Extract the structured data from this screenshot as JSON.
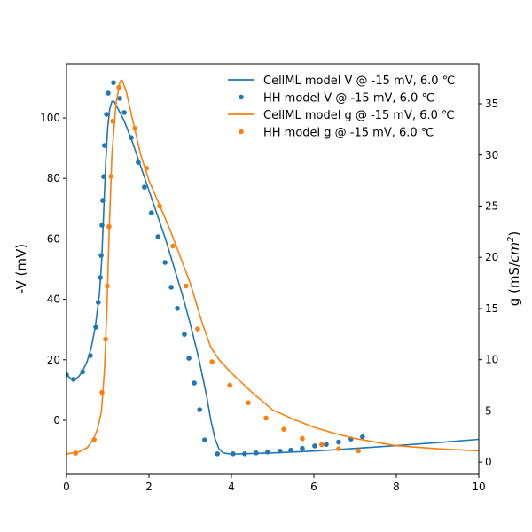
{
  "chart_data": {
    "type": "line",
    "xlabel": "",
    "ylabel": "-V (mV)",
    "ylabel_right_prefix": "g (mS/",
    "ylabel_right_unit": "cm",
    "ylabel_right_exp": "2",
    "ylabel_right_suffix": ")",
    "xlim": [
      0,
      10
    ],
    "ylim": [
      -17.9,
      117.9
    ],
    "ylim_right": [
      -1.2,
      38.9
    ],
    "xticks": [
      "0",
      "2",
      "4",
      "6",
      "8",
      "10"
    ],
    "yticks": [
      "0",
      "20",
      "40",
      "60",
      "80",
      "100"
    ],
    "yticks_right": [
      "0",
      "5",
      "10",
      "15",
      "20",
      "25",
      "30",
      "35"
    ],
    "legend_position": "top-right",
    "colors": {
      "V": "#1f77b4",
      "g": "#ff7f0e"
    },
    "series": [
      {
        "name": "CellML model V @ -15 mV, 6.0 ℃",
        "kind": "line",
        "axis": "left",
        "color": "#1f77b4",
        "points": [
          [
            0,
            15
          ],
          [
            0.1,
            13.8
          ],
          [
            0.2,
            13.5
          ],
          [
            0.3,
            14.5
          ],
          [
            0.4,
            16.5
          ],
          [
            0.5,
            19.5
          ],
          [
            0.6,
            24
          ],
          [
            0.7,
            31
          ],
          [
            0.8,
            42
          ],
          [
            0.85,
            52
          ],
          [
            0.9,
            68
          ],
          [
            0.95,
            85
          ],
          [
            1.0,
            97
          ],
          [
            1.05,
            103
          ],
          [
            1.1,
            105.5
          ],
          [
            1.15,
            105.5
          ],
          [
            1.25,
            103
          ],
          [
            1.4,
            99
          ],
          [
            1.6,
            92
          ],
          [
            1.8,
            84
          ],
          [
            2.0,
            76
          ],
          [
            2.2,
            68
          ],
          [
            2.4,
            60
          ],
          [
            2.6,
            51
          ],
          [
            2.8,
            42
          ],
          [
            3.0,
            32
          ],
          [
            3.2,
            21
          ],
          [
            3.4,
            8
          ],
          [
            3.5,
            0
          ],
          [
            3.6,
            -6
          ],
          [
            3.7,
            -9.5
          ],
          [
            3.8,
            -10.8
          ],
          [
            4.0,
            -11.2
          ],
          [
            5,
            -10.8
          ],
          [
            6,
            -10.2
          ],
          [
            7,
            -9.3
          ],
          [
            8,
            -8.4
          ],
          [
            9,
            -7.4
          ],
          [
            10,
            -6.3
          ]
        ]
      },
      {
        "name": "HH model V @ -15 mV, 6.0 ℃",
        "kind": "scatter",
        "axis": "left",
        "color": "#1f77b4",
        "points": [
          [
            0,
            15
          ],
          [
            0.17,
            13.5
          ],
          [
            0.39,
            16
          ],
          [
            0.58,
            21.4
          ],
          [
            0.71,
            30.8
          ],
          [
            0.77,
            39
          ],
          [
            0.82,
            47.2
          ],
          [
            0.84,
            54.5
          ],
          [
            0.86,
            64.5
          ],
          [
            0.88,
            72.7
          ],
          [
            0.9,
            80.6
          ],
          [
            0.92,
            90.9
          ],
          [
            0.97,
            101.2
          ],
          [
            1.01,
            108.2
          ],
          [
            1.14,
            111.7
          ],
          [
            1.29,
            106.5
          ],
          [
            1.4,
            101.8
          ],
          [
            1.57,
            93.5
          ],
          [
            1.74,
            85.3
          ],
          [
            1.89,
            77.1
          ],
          [
            2.06,
            68.6
          ],
          [
            2.22,
            60.7
          ],
          [
            2.39,
            52.2
          ],
          [
            2.54,
            44
          ],
          [
            2.69,
            37
          ],
          [
            2.86,
            28.4
          ],
          [
            2.97,
            20.5
          ],
          [
            3.1,
            12.3
          ],
          [
            3.23,
            3.5
          ],
          [
            3.35,
            -6.5
          ],
          [
            3.66,
            -11.1
          ],
          [
            4.04,
            -11.1
          ],
          [
            4.32,
            -11.1
          ],
          [
            4.6,
            -10.8
          ],
          [
            4.88,
            -10.5
          ],
          [
            5.18,
            -10.2
          ],
          [
            5.44,
            -9.9
          ],
          [
            5.72,
            -9.3
          ],
          [
            6.02,
            -8.5
          ],
          [
            6.3,
            -8
          ],
          [
            6.6,
            -7.2
          ],
          [
            6.9,
            -6.2
          ],
          [
            7.18,
            -5.5
          ]
        ]
      },
      {
        "name": "CellML model g @ -15 mV, 6.0 ℃",
        "kind": "line",
        "axis": "right",
        "color": "#ff7f0e",
        "points": [
          [
            0,
            0.8
          ],
          [
            0.3,
            1.0
          ],
          [
            0.5,
            1.4
          ],
          [
            0.65,
            2.2
          ],
          [
            0.75,
            3.2
          ],
          [
            0.85,
            5
          ],
          [
            0.92,
            9
          ],
          [
            0.98,
            15
          ],
          [
            1.03,
            22
          ],
          [
            1.1,
            30
          ],
          [
            1.2,
            35
          ],
          [
            1.3,
            37.2
          ],
          [
            1.35,
            37.3
          ],
          [
            1.45,
            36.2
          ],
          [
            1.6,
            33.5
          ],
          [
            1.8,
            30
          ],
          [
            2.0,
            27.5
          ],
          [
            2.5,
            22.8
          ],
          [
            3.0,
            17.5
          ],
          [
            3.3,
            13.5
          ],
          [
            3.5,
            11.2
          ],
          [
            3.7,
            10
          ],
          [
            4,
            8.7
          ],
          [
            4.5,
            6.8
          ],
          [
            5,
            5.1
          ],
          [
            5.5,
            4.2
          ],
          [
            6,
            3.4
          ],
          [
            6.5,
            2.8
          ],
          [
            7,
            2.3
          ],
          [
            8,
            1.6
          ],
          [
            9,
            1.3
          ],
          [
            10,
            1.1
          ]
        ]
      },
      {
        "name": "HH model g @ -15 mV, 6.0 ℃",
        "kind": "scatter",
        "axis": "right",
        "color": "#ff7f0e",
        "points": [
          [
            0.22,
            0.87
          ],
          [
            0.67,
            2.2
          ],
          [
            0.86,
            6.8
          ],
          [
            0.95,
            12
          ],
          [
            0.99,
            17.2
          ],
          [
            1.03,
            23
          ],
          [
            1.08,
            27.9
          ],
          [
            1.12,
            33.3
          ],
          [
            1.27,
            36.6
          ],
          [
            1.66,
            32.6
          ],
          [
            1.94,
            28.7
          ],
          [
            2.26,
            25
          ],
          [
            2.58,
            21.1
          ],
          [
            2.9,
            17.2
          ],
          [
            3.18,
            13
          ],
          [
            3.53,
            9.8
          ],
          [
            3.96,
            7.5
          ],
          [
            4.41,
            5.8
          ],
          [
            4.84,
            4.3
          ],
          [
            5.27,
            3.2
          ],
          [
            5.72,
            2.3
          ],
          [
            6.19,
            1.7
          ],
          [
            6.6,
            1.3
          ],
          [
            7.08,
            1.1
          ]
        ]
      }
    ]
  }
}
